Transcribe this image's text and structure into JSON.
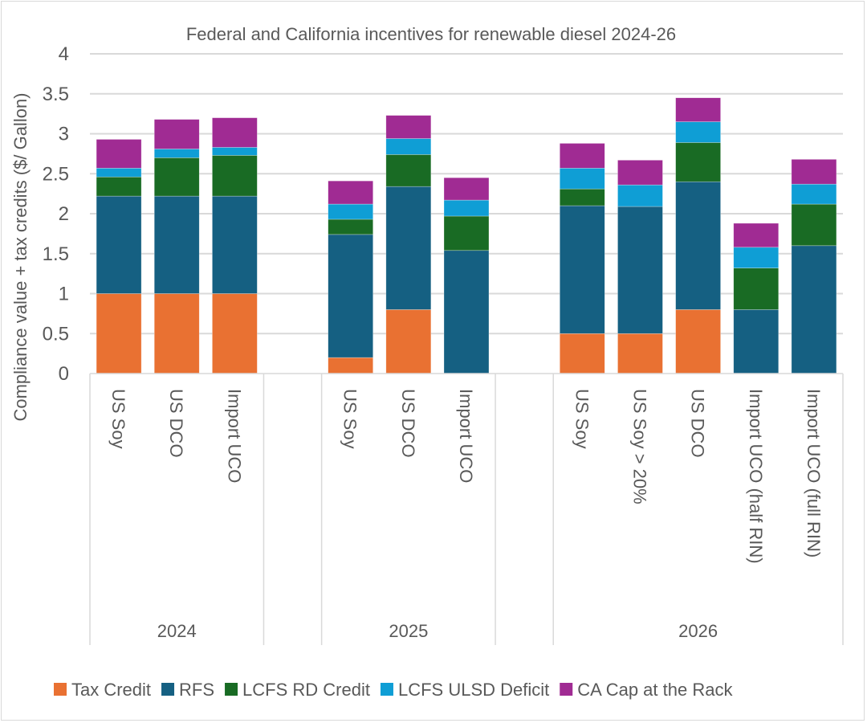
{
  "chart_data": {
    "type": "bar",
    "stacked": true,
    "title": "Federal and California incentives for renewable diesel 2024-26",
    "xlabel": "",
    "ylabel": "Compliance value + tax credits  ($/ Gallon)",
    "ylim": [
      0,
      4
    ],
    "yticks": [
      "0",
      "0.5",
      "1",
      "1.5",
      "2",
      "2.5",
      "3",
      "3.5",
      "4"
    ],
    "ytick_values": [
      0,
      0.5,
      1,
      1.5,
      2,
      2.5,
      3,
      3.5,
      4
    ],
    "grid": true,
    "legend_position": "bottom",
    "groups": [
      {
        "label": "2024",
        "categories": [
          "US Soy",
          "US DCO",
          "Import UCO"
        ]
      },
      {
        "label": "2025",
        "categories": [
          "US Soy",
          "US DCO",
          "Import UCO"
        ]
      },
      {
        "label": "2026",
        "categories": [
          "US Soy",
          "US Soy > 20%",
          "US DCO",
          "Import UCO (half RIN)",
          "Import UCO (full RIN)"
        ]
      }
    ],
    "categories": [
      "2024 US Soy",
      "2024 US DCO",
      "2024 Import UCO",
      "2025 US Soy",
      "2025 US DCO",
      "2025 Import UCO",
      "2026 US Soy",
      "2026 US Soy > 20%",
      "2026 US DCO",
      "2026 Import UCO (half RIN)",
      "2026 Import UCO (full RIN)"
    ],
    "series": [
      {
        "name": "Tax Credit",
        "color": "#E97132",
        "values": [
          1.0,
          1.0,
          1.0,
          0.2,
          0.8,
          0.0,
          0.5,
          0.5,
          0.8,
          0.0,
          0.0
        ]
      },
      {
        "name": "RFS",
        "color": "#156082",
        "values": [
          1.22,
          1.22,
          1.22,
          1.54,
          1.54,
          1.54,
          1.6,
          1.59,
          1.6,
          0.8,
          1.6
        ]
      },
      {
        "name": "LCFS RD Credit",
        "color": "#196B24",
        "values": [
          0.24,
          0.48,
          0.51,
          0.19,
          0.4,
          0.43,
          0.21,
          0.0,
          0.49,
          0.52,
          0.52
        ]
      },
      {
        "name": "LCFS ULSD Deficit",
        "color": "#0F9ED5",
        "values": [
          0.11,
          0.11,
          0.1,
          0.19,
          0.2,
          0.2,
          0.26,
          0.27,
          0.26,
          0.26,
          0.25
        ]
      },
      {
        "name": "CA Cap at the Rack",
        "color": "#A02B93",
        "values": [
          0.36,
          0.37,
          0.37,
          0.29,
          0.29,
          0.28,
          0.31,
          0.31,
          0.3,
          0.3,
          0.31
        ]
      }
    ]
  }
}
